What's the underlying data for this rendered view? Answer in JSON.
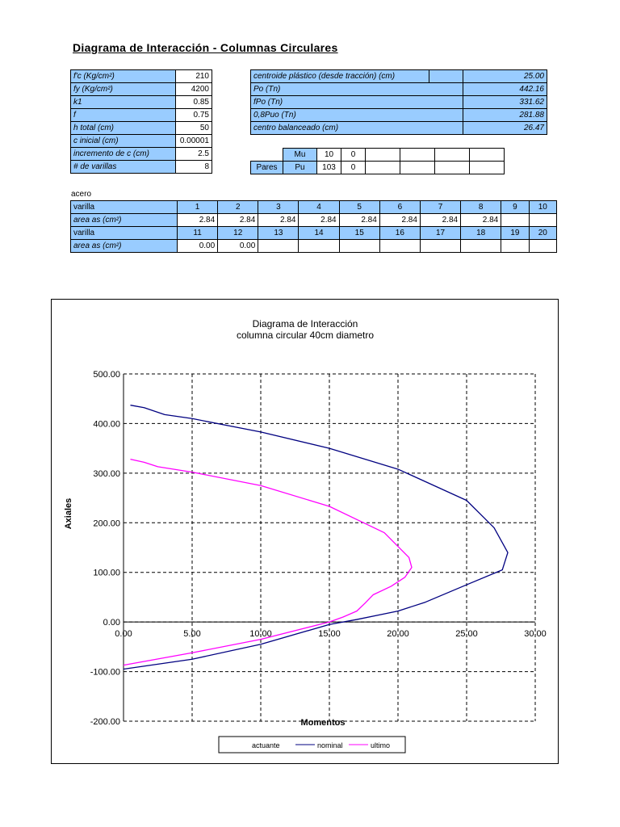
{
  "page_title": "Diagrama de Interacción - Columnas Circulares",
  "inputs": [
    {
      "label": "f'c (Kg/cm²)",
      "value": "210"
    },
    {
      "label": "fy (Kg/cm²)",
      "value": "4200"
    },
    {
      "label": "k1",
      "value": "0.85"
    },
    {
      "label": "f",
      "value": "0.75"
    },
    {
      "label": "h total (cm)",
      "value": "50"
    },
    {
      "label": "c inicial (cm)",
      "value": "0.00001"
    },
    {
      "label": "incremento de c (cm)",
      "value": "2.5"
    },
    {
      "label": "# de varillas",
      "value": "8"
    }
  ],
  "results": [
    {
      "label": "centroide plástico (desde tracción) (cm)",
      "value": "25.00"
    },
    {
      "label": "Po (Tn)",
      "value": "442.16"
    },
    {
      "label": "fPo (Tn)",
      "value": "331.62"
    },
    {
      "label": "0,8Puo (Tn)",
      "value": "281.88"
    },
    {
      "label": "centro balanceado (cm)",
      "value": "26.47"
    }
  ],
  "pares": {
    "label": "Pares",
    "mu_label": "Mu",
    "pu_label": "Pu",
    "mu": [
      "10",
      "0"
    ],
    "pu": [
      "103",
      "0"
    ]
  },
  "acero": {
    "title": "acero",
    "varilla_label": "varilla",
    "area_label": "area as (cm²)",
    "row1_ids": [
      "1",
      "2",
      "3",
      "4",
      "5",
      "6",
      "7",
      "8",
      "9",
      "10"
    ],
    "row1_areas": [
      "2.84",
      "2.84",
      "2.84",
      "2.84",
      "2.84",
      "2.84",
      "2.84",
      "2.84",
      "",
      ""
    ],
    "row2_ids": [
      "11",
      "12",
      "13",
      "14",
      "15",
      "16",
      "17",
      "18",
      "19",
      "20"
    ],
    "row2_areas": [
      "0.00",
      "0.00",
      "",
      "",
      "",
      "",
      "",
      "",
      "",
      ""
    ]
  },
  "chart_data": {
    "type": "line",
    "title": "Diagrama de Interacción",
    "subtitle": "columna circular 40cm diametro",
    "xlabel": "Momentos",
    "ylabel": "Axiales",
    "xlim": [
      0,
      30
    ],
    "ylim": [
      -200,
      500
    ],
    "xticks": [
      "0.00",
      "5.00",
      "10.00",
      "15.00",
      "20.00",
      "25.00",
      "30.00"
    ],
    "yticks": [
      "500.00",
      "400.00",
      "300.00",
      "200.00",
      "100.00",
      "0.00",
      "-100.00",
      "-200.00"
    ],
    "grid": true,
    "legend": "bottom",
    "series": [
      {
        "name": "actuante",
        "color": "#000080",
        "points": []
      },
      {
        "name": "nominal",
        "color": "#000080",
        "points": [
          [
            0.5,
            437
          ],
          [
            1.5,
            432
          ],
          [
            3,
            418
          ],
          [
            5,
            410
          ],
          [
            10,
            383
          ],
          [
            15,
            350
          ],
          [
            20,
            308
          ],
          [
            25,
            245
          ],
          [
            27,
            190
          ],
          [
            28,
            140
          ],
          [
            27.6,
            105
          ],
          [
            25,
            75
          ],
          [
            22,
            40
          ],
          [
            20,
            22
          ],
          [
            17,
            5
          ],
          [
            15,
            -5
          ],
          [
            10,
            -45
          ],
          [
            5,
            -75
          ],
          [
            0,
            -95
          ]
        ]
      },
      {
        "name": "ultimo",
        "color": "#ff00ff",
        "points": [
          [
            0.5,
            328
          ],
          [
            1.5,
            322
          ],
          [
            2.5,
            313
          ],
          [
            5,
            302
          ],
          [
            10,
            275
          ],
          [
            15,
            233
          ],
          [
            19,
            180
          ],
          [
            20.8,
            130
          ],
          [
            21,
            110
          ],
          [
            20.5,
            90
          ],
          [
            19.5,
            72
          ],
          [
            18.2,
            55
          ],
          [
            17.6,
            38
          ],
          [
            17,
            22
          ],
          [
            16,
            10
          ],
          [
            15,
            0
          ],
          [
            10,
            -35
          ],
          [
            5,
            -62
          ],
          [
            0,
            -87
          ]
        ]
      }
    ]
  }
}
